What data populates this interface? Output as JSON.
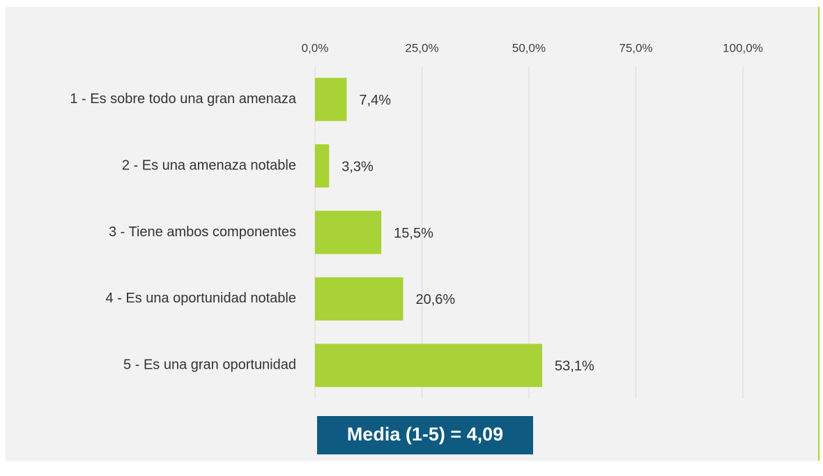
{
  "chart_data": {
    "type": "bar",
    "orientation": "horizontal",
    "categories": [
      "1 - Es sobre todo una gran amenaza",
      "2 - Es una amenaza notable",
      "3 - Tiene ambos componentes",
      "4 - Es una oportunidad notable",
      "5 - Es una gran oportunidad"
    ],
    "values": [
      7.4,
      3.3,
      15.5,
      20.6,
      53.1
    ],
    "value_labels": [
      "7,4%",
      "3,3%",
      "15,5%",
      "20,6%",
      "53,1%"
    ],
    "color": "#a8d235",
    "xlim": [
      0,
      100
    ],
    "xticks": [
      {
        "value": 0,
        "label": "0,0%"
      },
      {
        "value": 25,
        "label": "25,0%"
      },
      {
        "value": 50,
        "label": "50,0%"
      },
      {
        "value": 75,
        "label": "75,0%"
      },
      {
        "value": 100,
        "label": "100,0%"
      }
    ],
    "grid": true,
    "annotation": "Media (1-5) = 4,09"
  }
}
